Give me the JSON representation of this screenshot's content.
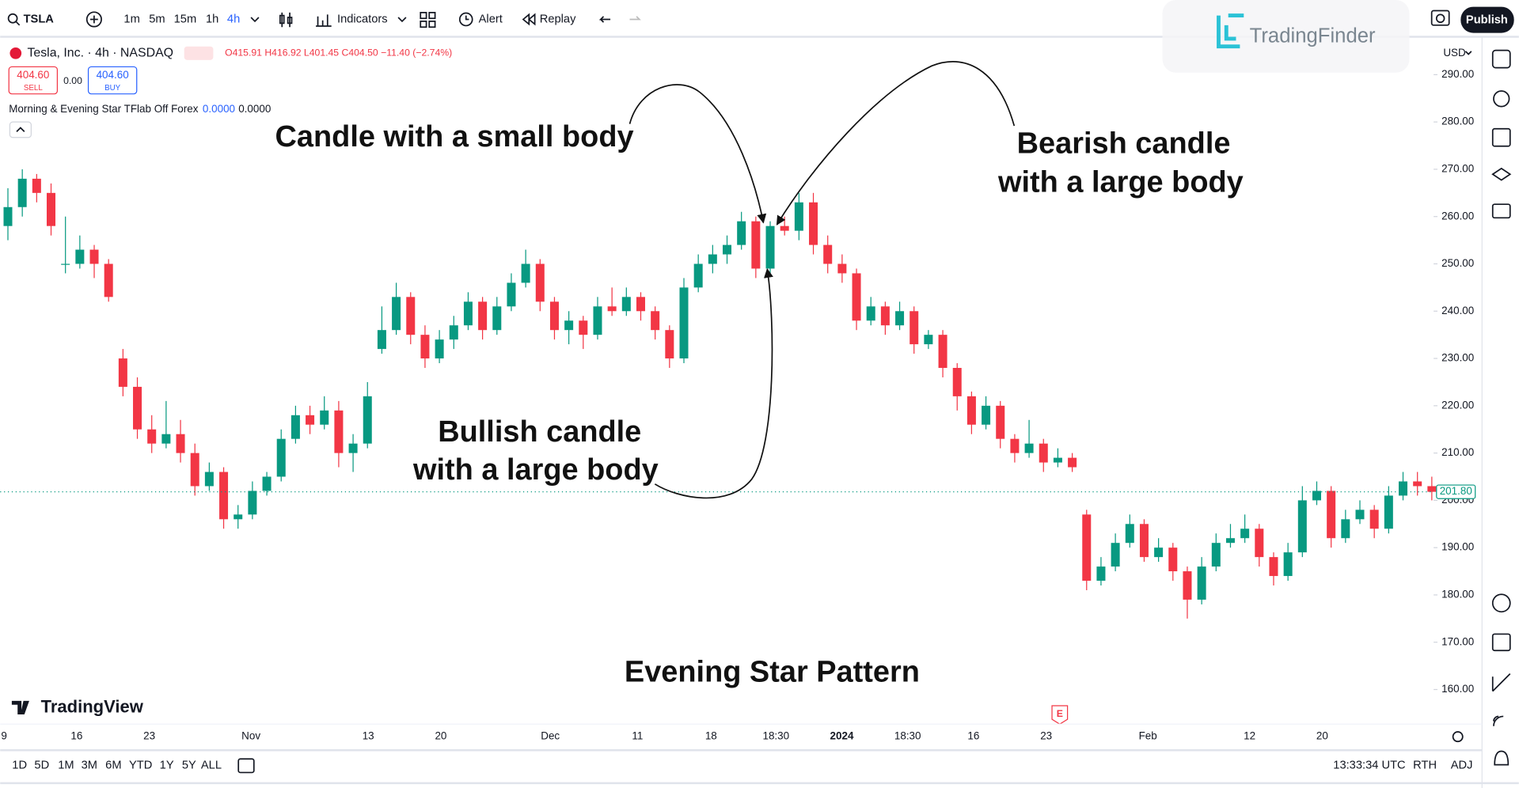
{
  "toolbar": {
    "symbol": "TSLA",
    "intervals": [
      "1m",
      "5m",
      "15m",
      "1h",
      "4h"
    ],
    "indicators": "Indicators",
    "alert": "Alert",
    "replay": "Replay",
    "publish": "Publish"
  },
  "legend": {
    "name": "Tesla, Inc. · 4h · NASDAQ",
    "ohlc_text": "O415.91 H416.92 L401.45 C404.50 −11.40 (−2.74%)",
    "sell_price": "404.60",
    "sell": "SELL",
    "spread": "0.00",
    "buy_price": "404.60",
    "buy": "BUY",
    "indicator": "Morning & Evening Star TFlab Off Forex",
    "indicator_value_1": "0.0000",
    "indicator_value_2": "0.0000"
  },
  "watermark": {
    "brand": "TradingFinder",
    "platform": "TradingView"
  },
  "chart_data": {
    "type": "candlestick",
    "title": "Evening Star Pattern",
    "currency": "USD",
    "annotations": {
      "small_body": "Candle with a small body",
      "bearish_1": "Bearish candle",
      "bearish_2": "with a large body",
      "bullish_1": "Bullish candle",
      "bullish_2": "with a large body"
    },
    "up_color": "#089981",
    "down_color": "#f23645",
    "ohlc": [
      [
        258,
        266,
        255,
        262
      ],
      [
        262,
        270,
        260,
        268
      ],
      [
        268,
        269,
        263,
        265
      ],
      [
        265,
        267,
        256,
        258
      ],
      [
        250,
        260,
        248,
        250
      ],
      [
        250,
        256,
        249,
        253
      ],
      [
        253,
        254,
        247,
        250
      ],
      [
        250,
        251,
        242,
        243
      ],
      [
        230,
        232,
        222,
        224
      ],
      [
        224,
        226,
        213,
        215
      ],
      [
        215,
        218,
        210,
        212
      ],
      [
        212,
        221,
        211,
        214
      ],
      [
        214,
        217,
        208,
        210
      ],
      [
        210,
        212,
        201,
        203
      ],
      [
        203,
        208,
        202,
        206
      ],
      [
        206,
        207,
        194,
        196
      ],
      [
        196,
        199,
        194,
        197
      ],
      [
        197,
        204,
        196,
        202
      ],
      [
        202,
        206,
        201,
        205
      ],
      [
        205,
        215,
        204,
        213
      ],
      [
        213,
        220,
        212,
        218
      ],
      [
        218,
        220,
        214,
        216
      ],
      [
        216,
        222,
        215,
        219
      ],
      [
        219,
        221,
        207,
        210
      ],
      [
        210,
        214,
        206,
        212
      ],
      [
        212,
        225,
        211,
        222
      ],
      [
        232,
        241,
        231,
        236
      ],
      [
        236,
        246,
        235,
        243
      ],
      [
        243,
        244,
        233,
        235
      ],
      [
        235,
        237,
        228,
        230
      ],
      [
        230,
        236,
        229,
        234
      ],
      [
        234,
        239,
        232,
        237
      ],
      [
        237,
        244,
        236,
        242
      ],
      [
        242,
        243,
        234,
        236
      ],
      [
        236,
        243,
        235,
        241
      ],
      [
        241,
        248,
        240,
        246
      ],
      [
        246,
        253,
        245,
        250
      ],
      [
        250,
        251,
        240,
        242
      ],
      [
        242,
        243,
        234,
        236
      ],
      [
        236,
        240,
        233,
        238
      ],
      [
        238,
        239,
        232,
        235
      ],
      [
        235,
        243,
        234,
        241
      ],
      [
        241,
        245,
        239,
        240
      ],
      [
        240,
        245,
        239,
        243
      ],
      [
        243,
        244,
        238,
        240
      ],
      [
        240,
        241,
        234,
        236
      ],
      [
        236,
        237,
        228,
        230
      ],
      [
        230,
        247,
        229,
        245
      ],
      [
        245,
        252,
        244,
        250
      ],
      [
        250,
        254,
        248,
        252
      ],
      [
        252,
        256,
        250,
        254
      ],
      [
        254,
        261,
        253,
        259
      ],
      [
        259,
        260,
        247,
        249
      ],
      [
        249,
        259,
        248,
        258
      ],
      [
        258,
        260,
        256,
        257
      ],
      [
        257,
        265,
        255,
        263
      ],
      [
        263,
        265,
        252,
        254
      ],
      [
        254,
        256,
        248,
        250
      ],
      [
        250,
        252,
        246,
        248
      ],
      [
        248,
        249,
        236,
        238
      ],
      [
        238,
        243,
        237,
        241
      ],
      [
        241,
        242,
        235,
        237
      ],
      [
        237,
        242,
        236,
        240
      ],
      [
        240,
        241,
        231,
        233
      ],
      [
        233,
        236,
        232,
        235
      ],
      [
        235,
        236,
        226,
        228
      ],
      [
        228,
        229,
        219,
        222
      ],
      [
        222,
        223,
        214,
        216
      ],
      [
        216,
        222,
        215,
        220
      ],
      [
        220,
        221,
        211,
        213
      ],
      [
        213,
        214,
        208,
        210
      ],
      [
        210,
        217,
        209,
        212
      ],
      [
        212,
        213,
        206,
        208
      ],
      [
        208,
        211,
        207,
        209
      ],
      [
        209,
        210,
        206,
        207
      ],
      [
        197,
        198,
        181,
        183
      ],
      [
        183,
        188,
        182,
        186
      ],
      [
        186,
        193,
        185,
        191
      ],
      [
        191,
        197,
        190,
        195
      ],
      [
        195,
        196,
        187,
        188
      ],
      [
        188,
        192,
        187,
        190
      ],
      [
        190,
        191,
        183,
        185
      ],
      [
        185,
        186,
        175,
        179
      ],
      [
        179,
        188,
        178,
        186
      ],
      [
        186,
        193,
        185,
        191
      ],
      [
        191,
        195,
        190,
        192
      ],
      [
        192,
        197,
        191,
        194
      ],
      [
        194,
        195,
        186,
        188
      ],
      [
        188,
        189,
        182,
        184
      ],
      [
        184,
        191,
        183,
        189
      ],
      [
        189,
        203,
        188,
        200
      ],
      [
        200,
        204,
        199,
        202
      ],
      [
        202,
        203,
        190,
        192
      ],
      [
        192,
        198,
        191,
        196
      ],
      [
        196,
        200,
        195,
        198
      ],
      [
        198,
        199,
        192,
        194
      ],
      [
        194,
        203,
        193,
        201
      ],
      [
        201,
        206,
        200,
        204
      ],
      [
        204,
        206,
        201,
        203
      ],
      [
        203,
        205,
        200,
        201.8
      ]
    ],
    "ylim": [
      153.3,
      297.6
    ],
    "yticks": [
      {
        "value": 290,
        "label": "290.00"
      },
      {
        "value": 280,
        "label": "280.00"
      },
      {
        "value": 270,
        "label": "270.00"
      },
      {
        "value": 260,
        "label": "260.00"
      },
      {
        "value": 250,
        "label": "250.00"
      },
      {
        "value": 240,
        "label": "240.00"
      },
      {
        "value": 230,
        "label": "230.00"
      },
      {
        "value": 220,
        "label": "220.00"
      },
      {
        "value": 210,
        "label": "210.00"
      },
      {
        "value": 200,
        "label": "200.00"
      },
      {
        "value": 190,
        "label": "190.00"
      },
      {
        "value": 180,
        "label": "180.00"
      },
      {
        "value": 170,
        "label": "170.00"
      },
      {
        "value": 160,
        "label": "160.00"
      }
    ],
    "grid": false,
    "last_price": {
      "value": 201.8,
      "label": "201.80"
    },
    "xticks": [
      "9",
      "16",
      "23",
      "Nov",
      "13",
      "20",
      "Dec",
      "11",
      "18",
      "18:30",
      "2024",
      "18:30",
      "16",
      "23",
      "Feb",
      "12",
      "20"
    ],
    "earnings_marker": "E"
  },
  "bottom_bar": {
    "ranges": [
      "1D",
      "5D",
      "1M",
      "3M",
      "6M",
      "YTD",
      "1Y",
      "5Y",
      "ALL"
    ],
    "time": "13:33:34 UTC",
    "session": "RTH",
    "adjust": "ADJ"
  }
}
